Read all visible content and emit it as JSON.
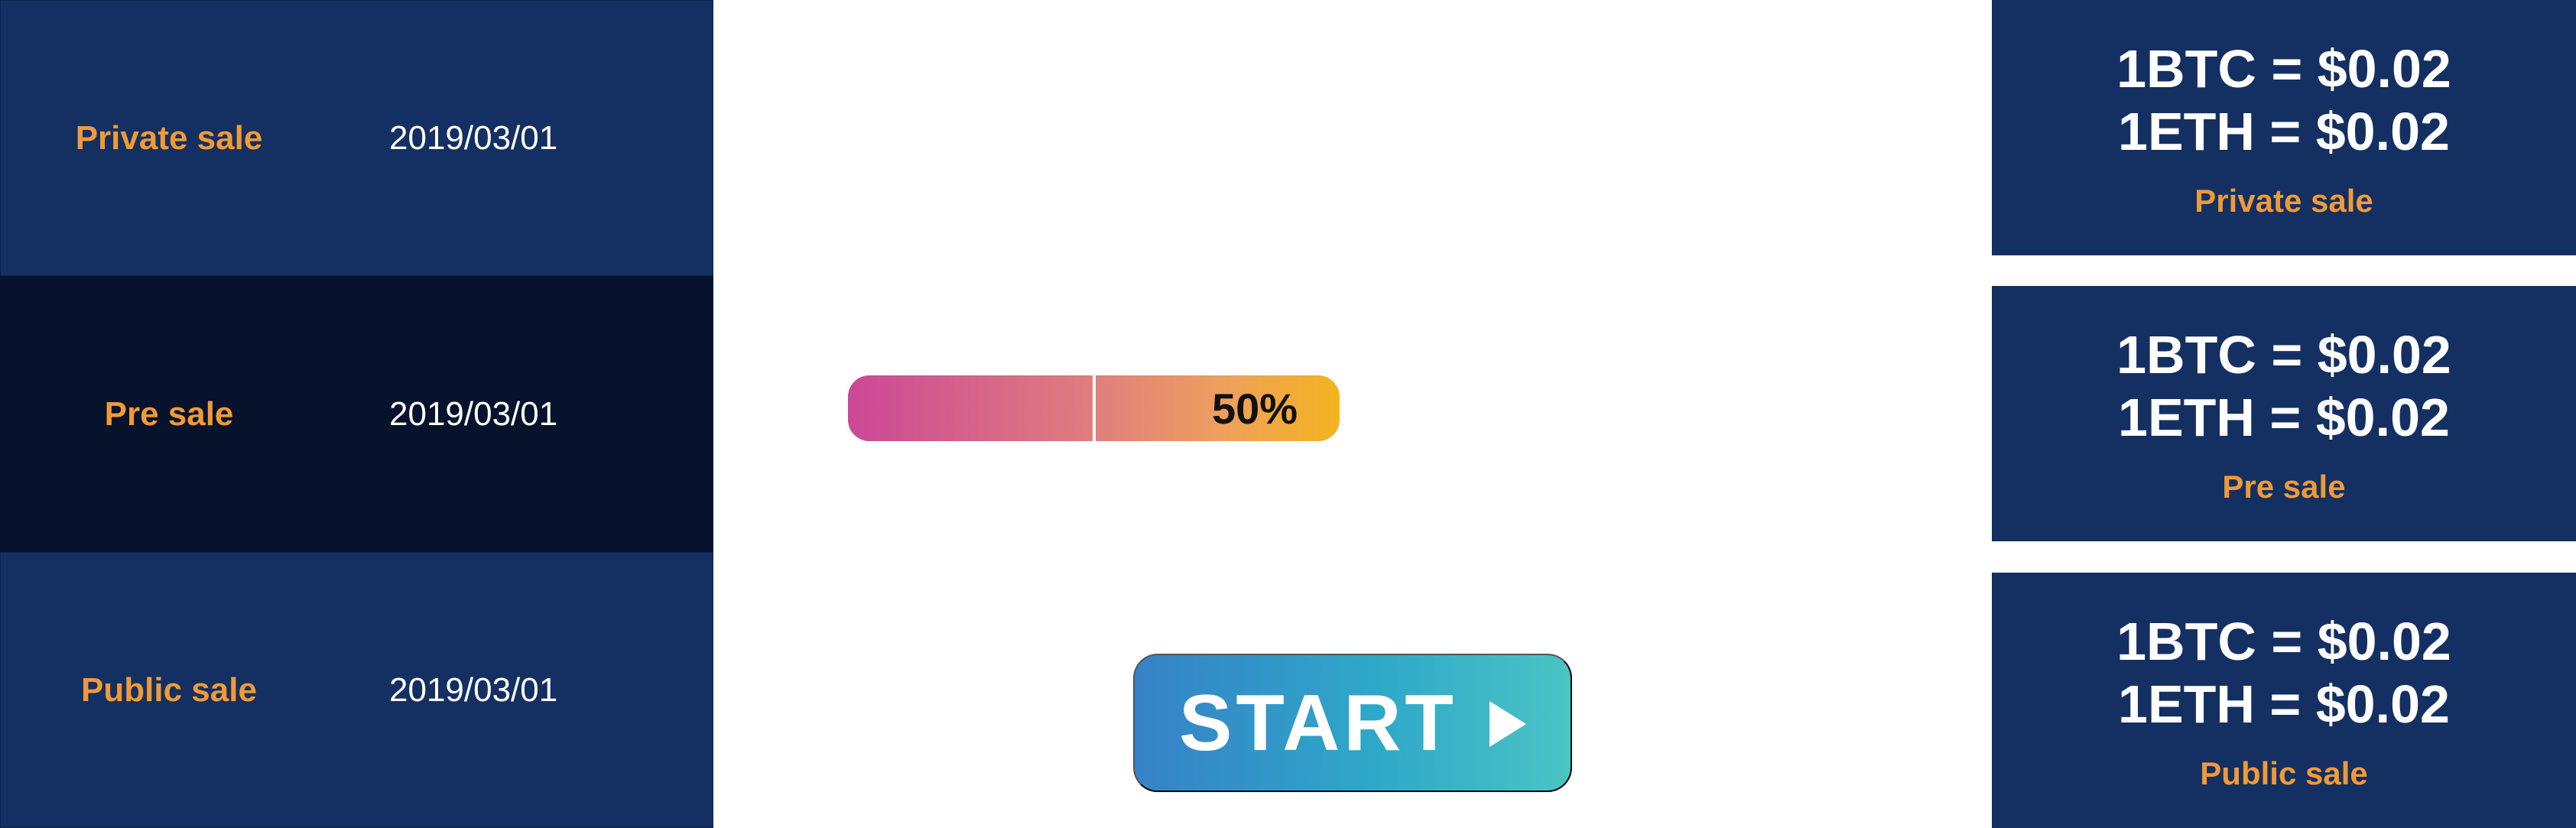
{
  "schedule": {
    "rows": [
      {
        "label": "Private sale",
        "date": "2019/03/01",
        "active": false
      },
      {
        "label": "Pre sale",
        "date": "2019/03/01",
        "active": true
      },
      {
        "label": "Public sale",
        "date": "2019/03/01",
        "active": false
      }
    ]
  },
  "progress": {
    "percent": 50,
    "label": "50%"
  },
  "start_button": {
    "label": "START",
    "icon": "play-icon"
  },
  "rate_cards": [
    {
      "btc": "1BTC = $0.02",
      "eth": "1ETH = $0.02",
      "phase": "Private sale"
    },
    {
      "btc": "1BTC = $0.02",
      "eth": "1ETH = $0.02",
      "phase": "Pre sale"
    },
    {
      "btc": "1BTC = $0.02",
      "eth": "1ETH = $0.02",
      "phase": "Public sale"
    }
  ],
  "colors": {
    "navy": "#143063",
    "dark_navy": "#07132d",
    "orange": "#f09a36",
    "white": "#ffffff",
    "pink": "#cb4896",
    "yellow": "#f3b41e",
    "blue": "#3681c7",
    "teal": "#4bc4c5"
  }
}
